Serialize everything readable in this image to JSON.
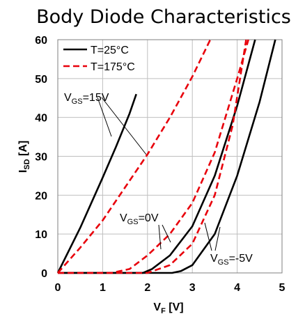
{
  "chart_data": {
    "type": "line",
    "title": "Body Diode Characteristics",
    "xlabel": {
      "main": "V",
      "sub": "F",
      "unit": " [V]"
    },
    "ylabel": {
      "main": "I",
      "sub": "SD",
      "unit": " [A]"
    },
    "xlim": [
      0,
      5
    ],
    "ylim": [
      0,
      60
    ],
    "xticks": [
      "0",
      "1",
      "2",
      "3",
      "4",
      "5"
    ],
    "yticks": [
      "0",
      "10",
      "20",
      "30",
      "40",
      "50",
      "60"
    ],
    "grid": true,
    "legend": {
      "placement": "top-left",
      "entries": [
        {
          "label": "T=25°C",
          "color": "#000000",
          "dash": "solid"
        },
        {
          "label": "T=175°C",
          "color": "#e8000b",
          "dash": "dashed"
        }
      ]
    },
    "series": [
      {
        "temperature": "T=25°C",
        "vgs": "15V",
        "color": "#000000",
        "dash": "solid",
        "x": [
          0,
          0.5,
          1.0,
          1.3,
          1.6,
          1.75
        ],
        "y": [
          0,
          11.6,
          24.5,
          32.5,
          41,
          46
        ]
      },
      {
        "temperature": "T=25°C",
        "vgs": "0V",
        "color": "#000000",
        "dash": "solid",
        "x": [
          0,
          1.9,
          2.1,
          2.5,
          3.0,
          3.5,
          4.0,
          4.4
        ],
        "y": [
          0,
          0,
          1,
          4.5,
          12,
          25,
          43,
          60
        ]
      },
      {
        "temperature": "T=25°C",
        "vgs": "-5V",
        "color": "#000000",
        "dash": "solid",
        "x": [
          0,
          2.55,
          2.75,
          3.0,
          3.5,
          4.0,
          4.5,
          4.85
        ],
        "y": [
          0,
          0,
          0.5,
          2,
          10,
          25,
          44,
          60
        ]
      },
      {
        "temperature": "T=175°C",
        "vgs": "15V",
        "color": "#e8000b",
        "dash": "dashed",
        "x": [
          0,
          0.5,
          1.0,
          1.5,
          2.0,
          2.5,
          3.0,
          3.4
        ],
        "y": [
          0,
          6.5,
          13.5,
          22,
          30.5,
          40,
          50.5,
          60
        ]
      },
      {
        "temperature": "T=175°C",
        "vgs": "0V",
        "color": "#e8000b",
        "dash": "dashed",
        "x": [
          0,
          1.2,
          1.6,
          2.0,
          2.5,
          3.0,
          3.5,
          4.0,
          4.25
        ],
        "y": [
          0,
          0,
          1,
          4.5,
          10,
          18,
          31,
          50,
          60
        ]
      },
      {
        "temperature": "T=175°C",
        "vgs": "-5V",
        "color": "#e8000b",
        "dash": "dashed",
        "x": [
          0,
          2.0,
          2.5,
          3.0,
          3.5,
          3.9,
          4.2
        ],
        "y": [
          0,
          0,
          2,
          7.5,
          20,
          38,
          60
        ]
      }
    ],
    "annotations": [
      {
        "main": "V",
        "sub": "GS",
        "value": "=15V",
        "color": "#000000"
      },
      {
        "main": "V",
        "sub": "GS",
        "value": "=0V",
        "color": "#000000"
      },
      {
        "main": "V",
        "sub": "GS",
        "value": "=-5V",
        "color": "#000000"
      }
    ]
  }
}
